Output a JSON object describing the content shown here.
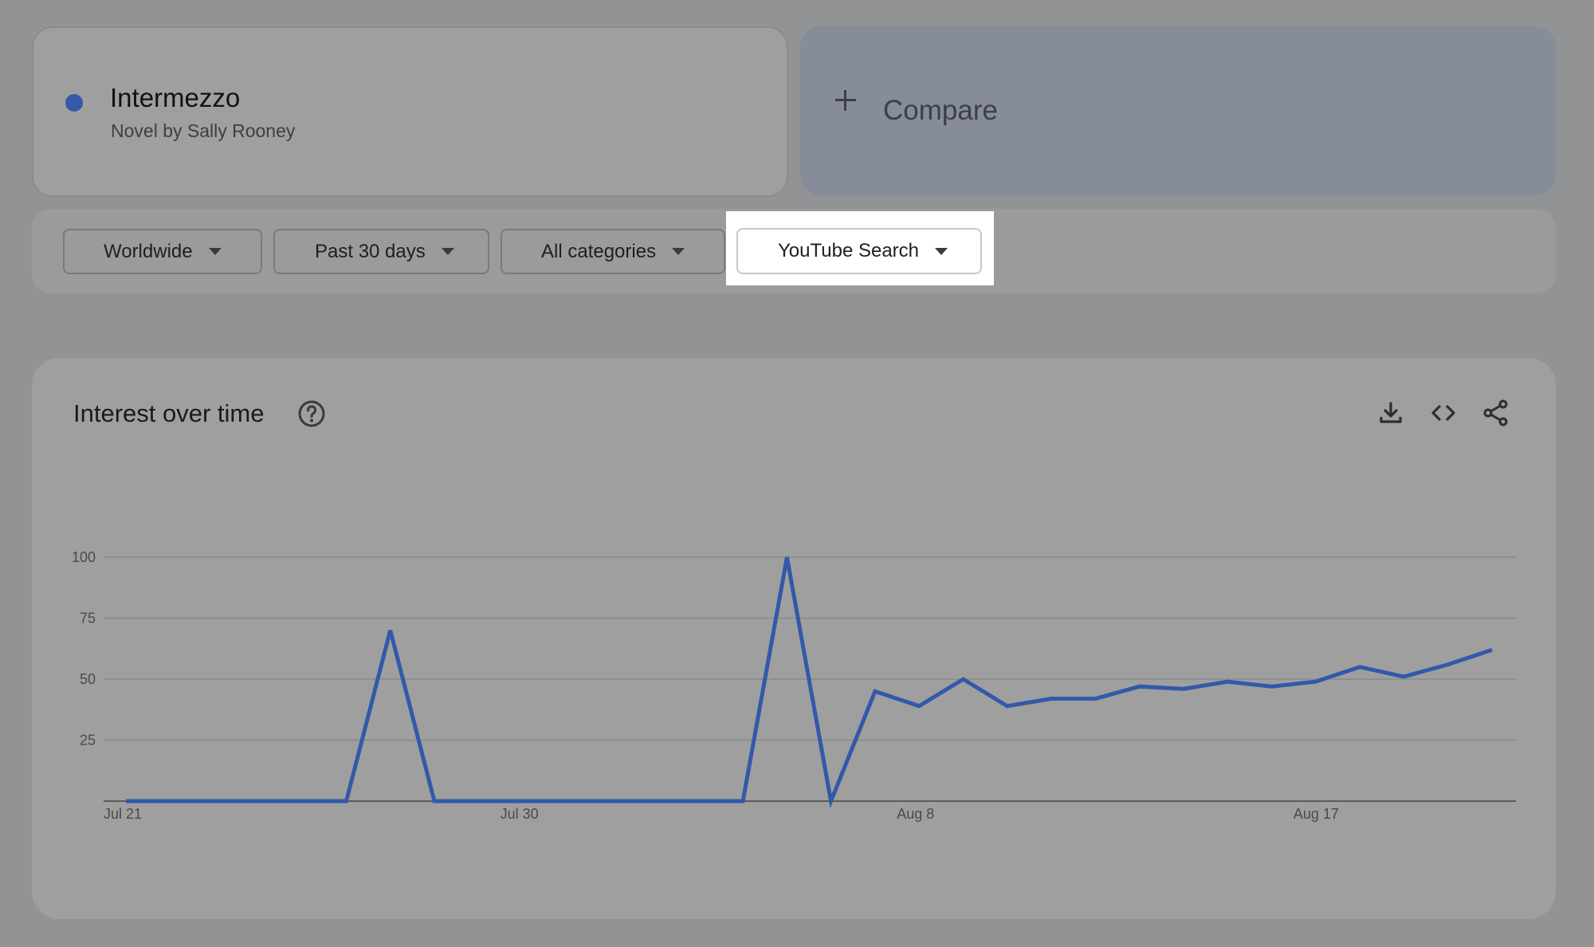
{
  "term": {
    "name": "Intermezzo",
    "subtitle": "Novel by Sally Rooney",
    "color": "#3359a8"
  },
  "compare": {
    "label": "Compare"
  },
  "filters": {
    "region": "Worldwide",
    "time": "Past 30 days",
    "category": "All categories",
    "property": "YouTube Search"
  },
  "icons": {
    "help": "help-circle-icon",
    "download": "download-icon",
    "embed": "code-embed-icon",
    "share": "share-icon"
  },
  "chart_data": {
    "type": "line",
    "title": "Interest over time",
    "x_labels": [
      "Jul 21",
      "Jul 30",
      "Aug 8",
      "Aug 17"
    ],
    "x_label_indices": [
      0,
      9,
      18,
      27
    ],
    "y_ticks": [
      100,
      75,
      50,
      25
    ],
    "ylim": [
      0,
      100
    ],
    "grid": true,
    "line_color": "#3359a8",
    "series": [
      {
        "values": [
          0,
          0,
          0,
          0,
          0,
          0,
          70,
          0,
          0,
          0,
          0,
          0,
          0,
          0,
          0,
          100,
          0,
          45,
          39,
          50,
          39,
          42,
          42,
          47,
          46,
          49,
          47,
          49,
          55,
          51,
          56,
          62
        ]
      }
    ]
  }
}
